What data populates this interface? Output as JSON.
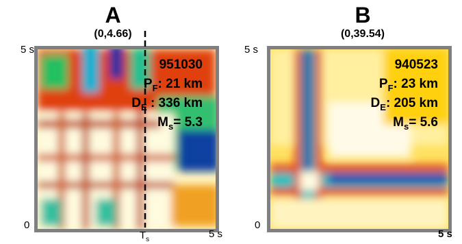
{
  "panels": [
    {
      "label": "A",
      "range": "(0,4.66)",
      "y_top": "5 s",
      "origin": "0",
      "x_right": "5 s",
      "marker": {
        "symbol": "T",
        "subscript": "s"
      },
      "event": "951030",
      "annotations": [
        {
          "symbol": "P",
          "subscript": "F",
          "text": ": 21 km"
        },
        {
          "symbol": "D",
          "subscript": "E",
          "text": " : 336 km"
        },
        {
          "symbol": "M",
          "subscript": "s",
          "text": "= 5.3"
        }
      ]
    },
    {
      "label": "B",
      "range": "(0,39.54)",
      "y_top": "5 s",
      "origin": "0",
      "x_right": "5 s",
      "event": "940523",
      "annotations": [
        {
          "symbol": "P",
          "subscript": "F",
          "text": ": 23 km"
        },
        {
          "symbol": "D",
          "subscript": "E",
          "text": ": 205 km"
        },
        {
          "symbol": "M",
          "subscript": "s",
          "text": "= 5.6"
        }
      ]
    }
  ]
}
